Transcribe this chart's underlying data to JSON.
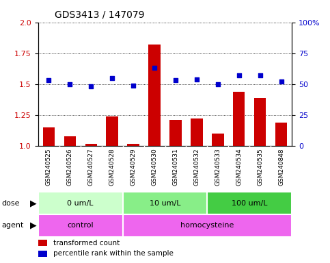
{
  "title": "GDS3413 / 147079",
  "samples": [
    "GSM240525",
    "GSM240526",
    "GSM240527",
    "GSM240528",
    "GSM240529",
    "GSM240530",
    "GSM240531",
    "GSM240532",
    "GSM240533",
    "GSM240534",
    "GSM240535",
    "GSM240848"
  ],
  "bar_values": [
    1.15,
    1.08,
    1.02,
    1.24,
    1.02,
    1.82,
    1.21,
    1.22,
    1.1,
    1.44,
    1.39,
    1.19
  ],
  "dot_values": [
    53,
    50,
    48,
    55,
    49,
    63,
    53,
    54,
    50,
    57,
    57,
    52
  ],
  "bar_color": "#cc0000",
  "dot_color": "#0000cc",
  "ylim_left": [
    1.0,
    2.0
  ],
  "ylim_right": [
    0,
    100
  ],
  "yticks_left": [
    1.0,
    1.25,
    1.5,
    1.75,
    2.0
  ],
  "yticks_right": [
    0,
    25,
    50,
    75,
    100
  ],
  "ytick_labels_right": [
    "0",
    "25",
    "50",
    "75",
    "100%"
  ],
  "dose_groups": [
    {
      "label": "0 um/L",
      "start": 0,
      "end": 4
    },
    {
      "label": "10 um/L",
      "start": 4,
      "end": 8
    },
    {
      "label": "100 um/L",
      "start": 8,
      "end": 12
    }
  ],
  "dose_colors": [
    "#ccffcc",
    "#88ee88",
    "#44cc44"
  ],
  "agent_groups": [
    {
      "label": "control",
      "start": 0,
      "end": 4
    },
    {
      "label": "homocysteine",
      "start": 4,
      "end": 12
    }
  ],
  "agent_colors": [
    "#ee88ee",
    "#ee88ee"
  ],
  "dose_label": "dose",
  "agent_label": "agent",
  "legend_bar": "transformed count",
  "legend_dot": "percentile rank within the sample",
  "bar_width": 0.55,
  "sample_bg_color": "#cccccc",
  "sample_sep_color": "#ffffff"
}
